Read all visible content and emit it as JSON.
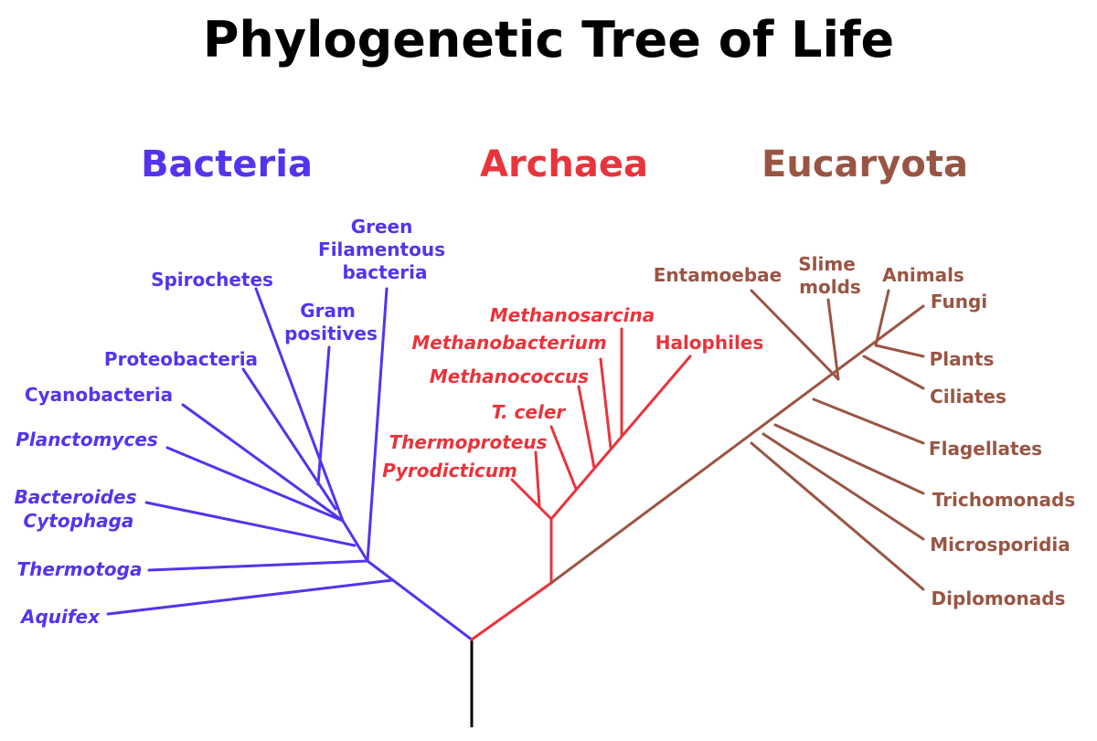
{
  "title": "Phylogenetic Tree of Life",
  "colors": {
    "bacteria": "#5533ee",
    "archaea": "#e8343c",
    "eucaryota": "#995544",
    "root": "#000000"
  },
  "domains": {
    "bacteria": "Bacteria",
    "archaea": "Archaea",
    "eucaryota": "Eucaryota"
  },
  "bacteria": {
    "green_filamentous": [
      "Green",
      "Filamentous",
      "bacteria"
    ],
    "spirochetes": "Spirochetes",
    "gram_positives": [
      "Gram",
      "positives"
    ],
    "proteobacteria": "Proteobacteria",
    "cyanobacteria": "Cyanobacteria",
    "planctomyces": "Planctomyces",
    "bacteroides_cytophaga": [
      "Bacteroides",
      "Cytophaga"
    ],
    "thermotoga": "Thermotoga",
    "aquifex": "Aquifex"
  },
  "archaea": {
    "methanosarcina": "Methanosarcina",
    "methanobacterium": "Methanobacterium",
    "halophiles": "Halophiles",
    "methanococcus": "Methanococcus",
    "t_celer": "T. celer",
    "thermoproteus": "Thermoproteus",
    "pyrodicticum": "Pyrodicticum"
  },
  "eucaryota": {
    "entamoebae": "Entamoebae",
    "slime_molds": [
      "Slime",
      "molds"
    ],
    "animals": "Animals",
    "fungi": "Fungi",
    "plants": "Plants",
    "ciliates": "Ciliates",
    "flagellates": "Flagellates",
    "trichomonads": "Trichomonads",
    "microsporidia": "Microsporidia",
    "diplomonads": "Diplomonads"
  }
}
